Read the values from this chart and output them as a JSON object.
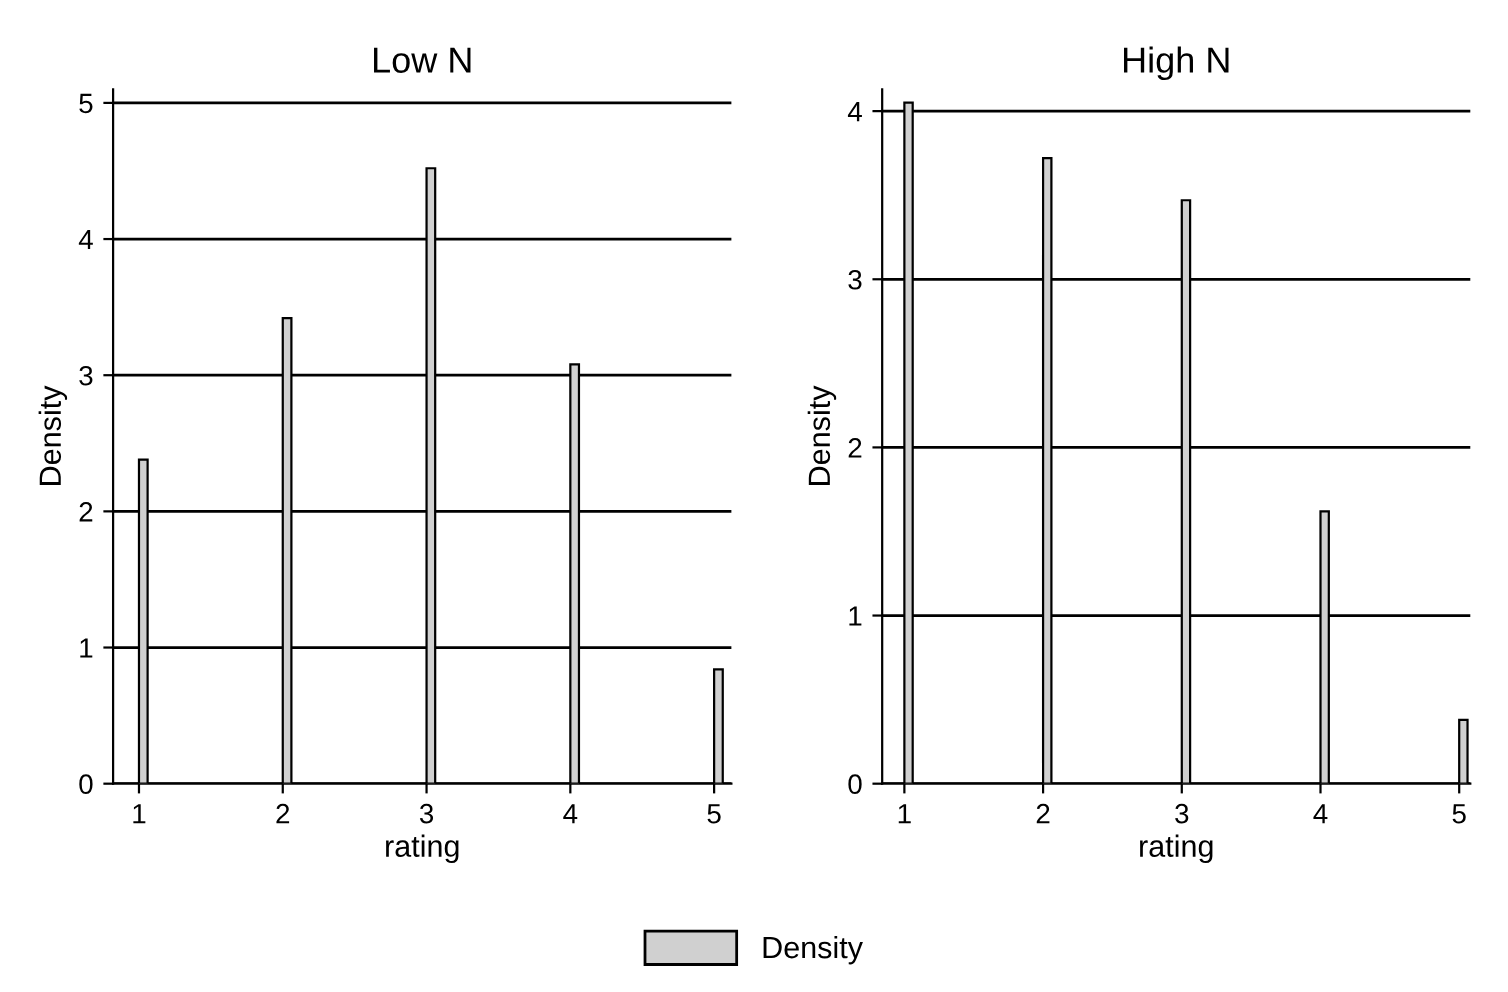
{
  "chart_data": [
    {
      "type": "bar",
      "title": "Low N",
      "xlabel": "rating",
      "ylabel": "Density",
      "x": [
        1,
        2,
        3,
        4,
        5
      ],
      "series": [
        {
          "name": "Density",
          "color": "#d0d0d0",
          "values": [
            2.38,
            3.42,
            4.52,
            3.08,
            0.84
          ]
        }
      ],
      "xlim": [
        0.82,
        5.12
      ],
      "ylim": [
        0,
        5.1
      ],
      "xticks": [
        1,
        2,
        3,
        4,
        5
      ],
      "yticks": [
        0,
        1,
        2,
        3,
        4,
        5
      ],
      "grid": "y",
      "legend": "bottom"
    },
    {
      "type": "bar",
      "title": "High N",
      "xlabel": "rating",
      "ylabel": "Density",
      "x": [
        1,
        2,
        3,
        4,
        5
      ],
      "series": [
        {
          "color": "#d0d0d0",
          "values": [
            4.05,
            3.72,
            3.47,
            1.62,
            0.38
          ]
        }
      ],
      "xlim": [
        0.84,
        5.08
      ],
      "ylim": [
        0,
        4.13
      ],
      "xticks": [
        1,
        2,
        3,
        4,
        5
      ],
      "yticks": [
        0,
        1,
        2,
        3,
        4
      ],
      "grid": "y"
    }
  ]
}
